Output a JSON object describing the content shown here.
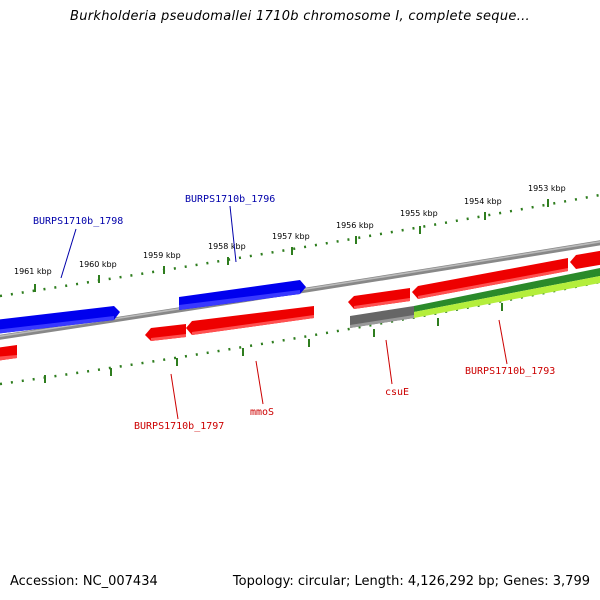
{
  "title": "Burkholderia pseudomallei 1710b chromosome I, complete seque...",
  "footer": {
    "accession": "Accession: NC_007434",
    "topology": "Topology: circular; Length: 4,126,292 bp; Genes: 3,799"
  },
  "colors": {
    "backbone": "#8a8a8a",
    "tick": "#2e7d1e",
    "forward_gene": "#0000ee",
    "reverse_gene": "#ee0000",
    "other_gene": "#666666",
    "green_gene": "#2a8a2a",
    "lime_gene": "#b4ee3c"
  },
  "ticks": [
    {
      "label": "1953 kbp"
    },
    {
      "label": "1954 kbp"
    },
    {
      "label": "1955 kbp"
    },
    {
      "label": "1956 kbp"
    },
    {
      "label": "1957 kbp"
    },
    {
      "label": "1958 kbp"
    },
    {
      "label": "1959 kbp"
    },
    {
      "label": "1960 kbp"
    },
    {
      "label": "1961 kbp"
    }
  ],
  "gene_labels": [
    {
      "text": "BURPS1710b_1798",
      "color": "#0000aa"
    },
    {
      "text": "BURPS1710b_1796",
      "color": "#0000aa"
    },
    {
      "text": "BURPS1710b_1797",
      "color": "#cc0000"
    },
    {
      "text": "mmoS",
      "color": "#cc0000"
    },
    {
      "text": "csuE",
      "color": "#cc0000"
    },
    {
      "text": "BURPS1710b_1793",
      "color": "#cc0000"
    }
  ]
}
